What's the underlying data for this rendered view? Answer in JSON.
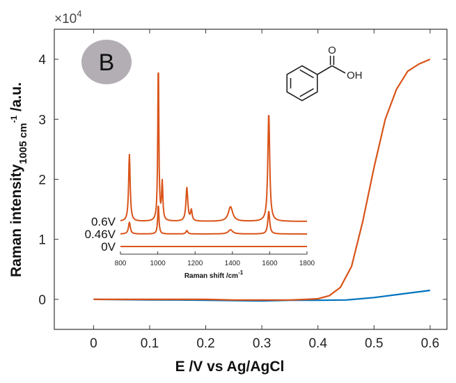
{
  "chart_data": [
    {
      "type": "line",
      "panel_label": "B",
      "xlabel": "E /V vs Ag/AgCl",
      "ylabel_main": "Raman intensity",
      "ylabel_sub": "1005 cm",
      "ylabel_sup": "-1",
      "ylabel_unit": " /a.u.",
      "y_multiplier_base": "×10",
      "y_multiplier_exp": "4",
      "xlim": [
        -0.07,
        0.63
      ],
      "ylim": [
        -5000,
        45000
      ],
      "x_ticks": [
        0,
        0.1,
        0.2,
        0.3,
        0.4,
        0.5,
        0.6
      ],
      "x_tick_labels": [
        "0",
        "0.1",
        "0.2",
        "0.3",
        "0.4",
        "0.5",
        "0.6"
      ],
      "y_ticks": [
        0,
        10000,
        20000,
        30000,
        40000
      ],
      "y_tick_labels": [
        "0",
        "1",
        "2",
        "3",
        "4"
      ],
      "grid": false,
      "series": [
        {
          "color": "#0072bd",
          "x": [
            0,
            0.05,
            0.1,
            0.15,
            0.2,
            0.25,
            0.3,
            0.35,
            0.4,
            0.45,
            0.5,
            0.55,
            0.6
          ],
          "y": [
            0,
            -50,
            -80,
            -100,
            -150,
            -200,
            -250,
            -150,
            -150,
            -100,
            300,
            900,
            1500
          ]
        },
        {
          "color": "#d95319",
          "x": [
            0,
            0.05,
            0.1,
            0.15,
            0.2,
            0.25,
            0.3,
            0.35,
            0.38,
            0.4,
            0.42,
            0.44,
            0.46,
            0.48,
            0.5,
            0.52,
            0.54,
            0.56,
            0.58,
            0.6
          ],
          "y": [
            0,
            0,
            0,
            0,
            0,
            -100,
            -100,
            -100,
            0,
            100,
            600,
            2000,
            5500,
            13000,
            22000,
            30000,
            35000,
            38000,
            39200,
            40000
          ]
        }
      ]
    },
    {
      "type": "line",
      "role": "inset",
      "xlabel": "Raman shift /cm",
      "xlabel_sup": "-1",
      "xlim": [
        800,
        1800
      ],
      "x_ticks": [
        800,
        1000,
        1200,
        1400,
        1600,
        1800
      ],
      "x_tick_labels": [
        "800",
        "1000",
        "1200",
        "1400",
        "1600",
        "1800"
      ],
      "series": [
        {
          "name": "0.6V",
          "color": "#d95319",
          "baseline": 0.6,
          "peaks": [
            {
              "center": 848,
              "height": 1.6,
              "width": 5
            },
            {
              "center": 1003,
              "height": 3.8,
              "width": 3.5
            },
            {
              "center": 1024,
              "height": 0.9,
              "width": 4
            },
            {
              "center": 1156,
              "height": 0.8,
              "width": 6
            },
            {
              "center": 1180,
              "height": 0.25,
              "width": 5
            },
            {
              "center": 1390,
              "height": 0.35,
              "width": 14
            },
            {
              "center": 1595,
              "height": 2.6,
              "width": 6
            }
          ]
        },
        {
          "name": "0.46V",
          "color": "#d95319",
          "baseline": 0.3,
          "peaks": [
            {
              "center": 848,
              "height": 0.28,
              "width": 6
            },
            {
              "center": 1003,
              "height": 0.7,
              "width": 4
            },
            {
              "center": 1156,
              "height": 0.08,
              "width": 6
            },
            {
              "center": 1390,
              "height": 0.1,
              "width": 14
            },
            {
              "center": 1595,
              "height": 0.55,
              "width": 6
            }
          ]
        },
        {
          "name": "0V",
          "color": "#d95319",
          "baseline": 0.0,
          "peaks": []
        }
      ]
    }
  ],
  "molecule": {
    "label": "OH",
    "carbonyl_atom": "O"
  },
  "colors": {
    "axis": "#333333",
    "badge_fill": "#b2aeb4",
    "inset_bg": "#ffffff"
  }
}
